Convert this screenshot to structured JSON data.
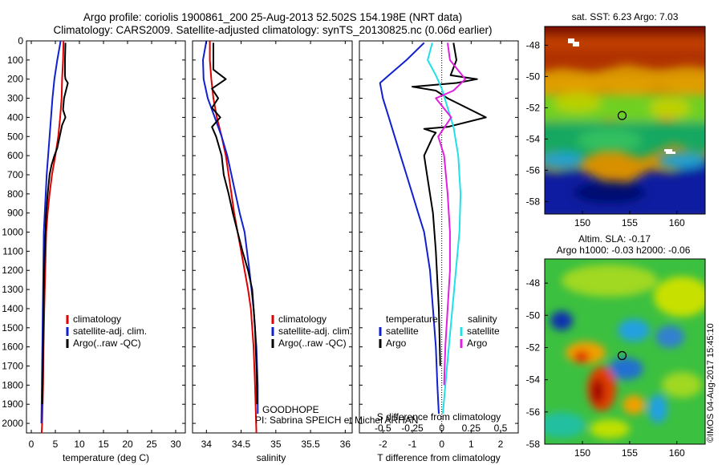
{
  "header": {
    "line1": "Argo profile: coriolis 1900861_200 25-Aug-2013 52.502S 154.198E (NRT data)",
    "line2": "Climatology: CARS2009. Satellite-adjusted climatology: synTS_20130825.nc (0.06d earlier)"
  },
  "credit": "©IMOS 04-Aug-2017 15:45:10",
  "colors": {
    "climatology": "#e00000",
    "satellite": "#1020d0",
    "argo": "#000000",
    "sat_salinity": "#20e0e8",
    "argo_salinity": "#e020e0"
  },
  "depth_axis": {
    "range": [
      0,
      2050
    ],
    "ticks": [
      0,
      100,
      200,
      300,
      400,
      500,
      600,
      700,
      800,
      900,
      1000,
      1100,
      1200,
      1300,
      1400,
      1500,
      1600,
      1700,
      1800,
      1900,
      2000
    ]
  },
  "chart_data": [
    {
      "type": "line",
      "id": "temperature",
      "xlabel": "temperature (deg C)",
      "xlim": [
        -1,
        32
      ],
      "xticks": [
        0,
        5,
        10,
        15,
        20,
        25,
        30
      ],
      "ylim": [
        0,
        2050
      ],
      "legend": [
        "climatology",
        "satellite-adj. clim.",
        "Argo(..raw -QC)"
      ],
      "series": [
        {
          "name": "climatology",
          "color": "#e00000",
          "x": [
            6.7,
            6.6,
            6.4,
            6.3,
            6.0,
            5.6,
            5.0,
            4.3,
            3.8,
            3.4,
            3.1,
            2.9,
            2.7,
            2.55,
            2.45,
            2.35,
            2.3,
            2.25,
            2.2,
            2.15,
            2.1
          ],
          "y": [
            0,
            100,
            200,
            300,
            400,
            500,
            600,
            700,
            800,
            900,
            1000,
            1200,
            1400,
            1600,
            1800,
            1900,
            1950,
            2000,
            2030,
            2050,
            2050
          ]
        },
        {
          "name": "satellite-adj. clim.",
          "color": "#1020d0",
          "x": [
            6.1,
            5.4,
            4.8,
            4.4,
            4.1,
            3.8,
            3.5,
            3.2,
            3.0,
            2.8,
            2.6,
            2.5,
            2.4,
            2.3,
            2.2,
            2.1
          ],
          "y": [
            0,
            100,
            200,
            300,
            400,
            500,
            600,
            700,
            800,
            900,
            1000,
            1200,
            1400,
            1600,
            1800,
            2000
          ]
        },
        {
          "name": "Argo(..raw -QC)",
          "color": "#000000",
          "x": [
            7.1,
            7.0,
            7.0,
            7.1,
            7.6,
            6.8,
            6.6,
            7.1,
            6.4,
            5.9,
            5.4,
            4.8,
            4.2,
            3.8,
            3.4,
            3.1,
            2.8,
            2.6,
            2.5,
            2.4,
            2.3
          ],
          "y": [
            10,
            100,
            180,
            200,
            220,
            300,
            360,
            400,
            440,
            500,
            560,
            600,
            650,
            700,
            800,
            900,
            1100,
            1300,
            1500,
            1700,
            1900
          ]
        }
      ]
    },
    {
      "type": "line",
      "id": "salinity",
      "xlabel": "salinity",
      "xlim": [
        33.8,
        36.1
      ],
      "xticks": [
        34,
        34.5,
        35,
        35.5,
        36
      ],
      "ylim": [
        0,
        2050
      ],
      "legend": [
        "climatology",
        "satellite-adj. clim.",
        "Argo(..raw -QC)"
      ],
      "annotation": [
        "GOODHOPE",
        "PI: Sabrina SPEICH et Michel ARHAN"
      ],
      "series": [
        {
          "name": "climatology",
          "color": "#e00000",
          "x": [
            34.05,
            34.05,
            34.07,
            34.1,
            34.15,
            34.22,
            34.28,
            34.32,
            34.36,
            34.4,
            34.45,
            34.5,
            34.55,
            34.6,
            34.64,
            34.68,
            34.7,
            34.72
          ],
          "y": [
            0,
            100,
            200,
            300,
            400,
            500,
            600,
            700,
            800,
            900,
            1000,
            1100,
            1200,
            1300,
            1400,
            1600,
            1800,
            2050
          ]
        },
        {
          "name": "satellite-adj. clim.",
          "color": "#1020d0",
          "x": [
            34.0,
            33.95,
            33.96,
            34.02,
            34.12,
            34.22,
            34.3,
            34.36,
            34.42,
            34.48,
            34.55,
            34.62,
            34.68,
            34.72,
            34.74,
            34.74
          ],
          "y": [
            0,
            100,
            200,
            300,
            400,
            500,
            600,
            700,
            800,
            900,
            1000,
            1200,
            1400,
            1600,
            1800,
            1950
          ]
        },
        {
          "name": "Argo(..raw -QC)",
          "color": "#000000",
          "x": [
            34.1,
            34.1,
            34.28,
            34.08,
            34.17,
            34.08,
            34.2,
            34.08,
            34.14,
            34.22,
            34.25,
            34.32,
            34.38,
            34.45,
            34.52,
            34.6,
            34.66,
            34.7,
            34.72,
            34.73
          ],
          "y": [
            10,
            150,
            200,
            250,
            300,
            350,
            400,
            450,
            500,
            600,
            700,
            800,
            900,
            1000,
            1100,
            1200,
            1300,
            1500,
            1700,
            1900
          ]
        }
      ]
    },
    {
      "type": "line",
      "id": "difference",
      "xlabel": "T difference from climatology",
      "x2label": "S difference from climatology",
      "xlim": [
        -2.8,
        2.6
      ],
      "xticks": [
        -2,
        -1,
        0,
        1,
        2
      ],
      "x2lim": [
        -0.7,
        0.65
      ],
      "x2ticks": [
        -0.5,
        -0.25,
        0,
        0.25,
        0.5
      ],
      "x2ticklabels": [
        "-0.5",
        "-0.25",
        "0",
        "0.25",
        "0.5"
      ],
      "ylim": [
        0,
        2050
      ],
      "legend_left_title": "temperature",
      "legend_left": [
        "satellite",
        "Argo"
      ],
      "legend_right_title": "salinity",
      "legend_right": [
        "satellite",
        "Argo"
      ],
      "series": [
        {
          "name": "temperature satellite",
          "color": "#1020d0",
          "axis": "T",
          "x": [
            -0.6,
            -1.2,
            -1.8,
            -2.1,
            -2.0,
            -1.8,
            -1.6,
            -1.4,
            -1.2,
            -1.0,
            -0.8,
            -0.6,
            -0.4,
            -0.3,
            -0.2,
            -0.15,
            -0.1
          ],
          "y": [
            10,
            100,
            180,
            220,
            300,
            400,
            500,
            600,
            700,
            800,
            900,
            1000,
            1200,
            1400,
            1600,
            1800,
            1950
          ]
        },
        {
          "name": "temperature Argo",
          "color": "#000000",
          "axis": "T",
          "x": [
            0.4,
            0.5,
            0.3,
            1.2,
            0.5,
            -1.0,
            -0.2,
            0.2,
            1.5,
            0.2,
            -0.6,
            -0.2,
            -0.3,
            -0.6,
            -0.5,
            -0.3,
            -0.2,
            -0.1,
            -0.05
          ],
          "y": [
            10,
            100,
            180,
            200,
            220,
            240,
            260,
            300,
            400,
            450,
            460,
            480,
            500,
            600,
            700,
            900,
            1100,
            1400,
            1700
          ]
        },
        {
          "name": "salinity satellite",
          "color": "#20e0e8",
          "axis": "S",
          "x": [
            -0.08,
            -0.12,
            -0.05,
            0.0,
            0.05,
            0.1,
            0.14,
            0.16,
            0.15,
            0.12,
            0.09,
            0.06,
            0.03,
            0.01
          ],
          "y": [
            10,
            100,
            180,
            250,
            350,
            450,
            600,
            800,
            1000,
            1200,
            1400,
            1600,
            1800,
            1950
          ]
        },
        {
          "name": "salinity Argo",
          "color": "#e020e0",
          "axis": "S",
          "x": [
            0.05,
            0.07,
            0.2,
            0.1,
            -0.05,
            0.08,
            -0.03,
            0.02,
            0.05,
            0.07,
            0.07,
            0.05,
            0.03,
            0.02
          ],
          "y": [
            10,
            100,
            200,
            260,
            300,
            400,
            500,
            600,
            800,
            1000,
            1200,
            1400,
            1600,
            1800
          ]
        }
      ]
    },
    {
      "type": "heatmap",
      "id": "sst-map",
      "title": "sat. SST: 6.23 Argo: 7.03",
      "xlim": [
        146,
        163
      ],
      "ylim": [
        -58.8,
        -46.8
      ],
      "xticks": [
        150,
        155,
        160
      ],
      "yticks": [
        -48,
        -50,
        -52,
        -54,
        -56,
        -58
      ],
      "marker": {
        "lon": 154.2,
        "lat": -52.5
      }
    },
    {
      "type": "heatmap",
      "id": "sla-map",
      "title": "Altim. SLA: -0.17",
      "subtitle": "Argo h1000: -0.03 h2000: -0.06",
      "xlim": [
        146,
        163
      ],
      "ylim": [
        -58,
        -46.5
      ],
      "xticks": [
        150,
        155,
        160
      ],
      "yticks": [
        -48,
        -50,
        -52,
        -54,
        -56,
        -58
      ],
      "marker": {
        "lon": 154.2,
        "lat": -52.5
      }
    }
  ]
}
